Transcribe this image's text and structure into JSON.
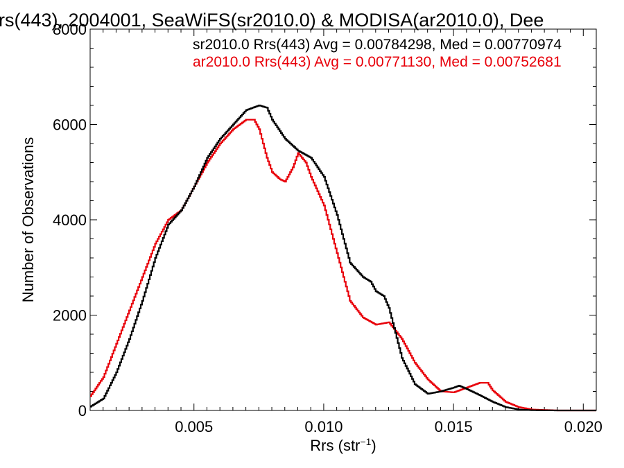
{
  "chart_data": {
    "type": "line",
    "title": "rs(443), 2004001, SeaWiFS(sr2010.0) & MODISA(ar2010.0), Dee",
    "xlabel": "Rrs (str",
    "xlabel_sup": "−1",
    "xlabel_tail": ")",
    "ylabel": "Number of Observations",
    "xlim": [
      0.001,
      0.0205
    ],
    "ylim": [
      0,
      8000
    ],
    "xticks": [
      0.005,
      0.01,
      0.015,
      0.02
    ],
    "xtick_labels": [
      "0.005",
      "0.010",
      "0.015",
      "0.020"
    ],
    "yticks": [
      0,
      2000,
      4000,
      6000,
      8000
    ],
    "ytick_labels": [
      "0",
      "2000",
      "4000",
      "6000",
      "8000"
    ],
    "grid": false,
    "legend_position": "top-right",
    "series": [
      {
        "name": "sr2010.0 Rrs(443)",
        "legend_text": "sr2010.0 Rrs(443) Avg = 0.00784298, Med = 0.00770974",
        "color": "#000000",
        "x": [
          0.001,
          0.0015,
          0.002,
          0.0025,
          0.003,
          0.0035,
          0.004,
          0.0045,
          0.005,
          0.0055,
          0.006,
          0.0065,
          0.007,
          0.0075,
          0.0078,
          0.008,
          0.0085,
          0.009,
          0.0095,
          0.01,
          0.0105,
          0.011,
          0.0115,
          0.0118,
          0.012,
          0.0123,
          0.0125,
          0.013,
          0.0135,
          0.014,
          0.0145,
          0.015,
          0.0152,
          0.0155,
          0.016,
          0.0165,
          0.017,
          0.0175,
          0.018,
          0.019,
          0.0205
        ],
        "y": [
          80,
          250,
          800,
          1500,
          2300,
          3200,
          3900,
          4200,
          4700,
          5300,
          5700,
          6000,
          6300,
          6400,
          6350,
          6100,
          5700,
          5450,
          5300,
          4900,
          4100,
          3100,
          2800,
          2700,
          2500,
          2400,
          2150,
          1100,
          550,
          350,
          400,
          480,
          520,
          450,
          320,
          180,
          70,
          20,
          5,
          0,
          0
        ]
      },
      {
        "name": "ar2010.0 Rrs(443)",
        "legend_text": "ar2010.0 Rrs(443) Avg = 0.00771130, Med = 0.00752681",
        "color": "#e8000a",
        "x": [
          0.001,
          0.0015,
          0.002,
          0.0025,
          0.003,
          0.0035,
          0.004,
          0.0045,
          0.005,
          0.0055,
          0.006,
          0.0065,
          0.007,
          0.0073,
          0.0075,
          0.0078,
          0.008,
          0.0083,
          0.0085,
          0.0088,
          0.009,
          0.0093,
          0.0095,
          0.01,
          0.0105,
          0.011,
          0.0115,
          0.012,
          0.0125,
          0.013,
          0.0135,
          0.014,
          0.0145,
          0.015,
          0.0155,
          0.016,
          0.0163,
          0.0165,
          0.017,
          0.0175,
          0.018,
          0.019,
          0.0205
        ],
        "y": [
          300,
          700,
          1400,
          2100,
          2800,
          3500,
          4000,
          4200,
          4700,
          5200,
          5600,
          5900,
          6100,
          6100,
          5900,
          5300,
          5000,
          4850,
          4800,
          5100,
          5400,
          5200,
          4900,
          4300,
          3300,
          2300,
          1950,
          1800,
          1850,
          1500,
          1000,
          650,
          400,
          380,
          480,
          580,
          580,
          420,
          180,
          70,
          20,
          0,
          0
        ]
      }
    ]
  }
}
